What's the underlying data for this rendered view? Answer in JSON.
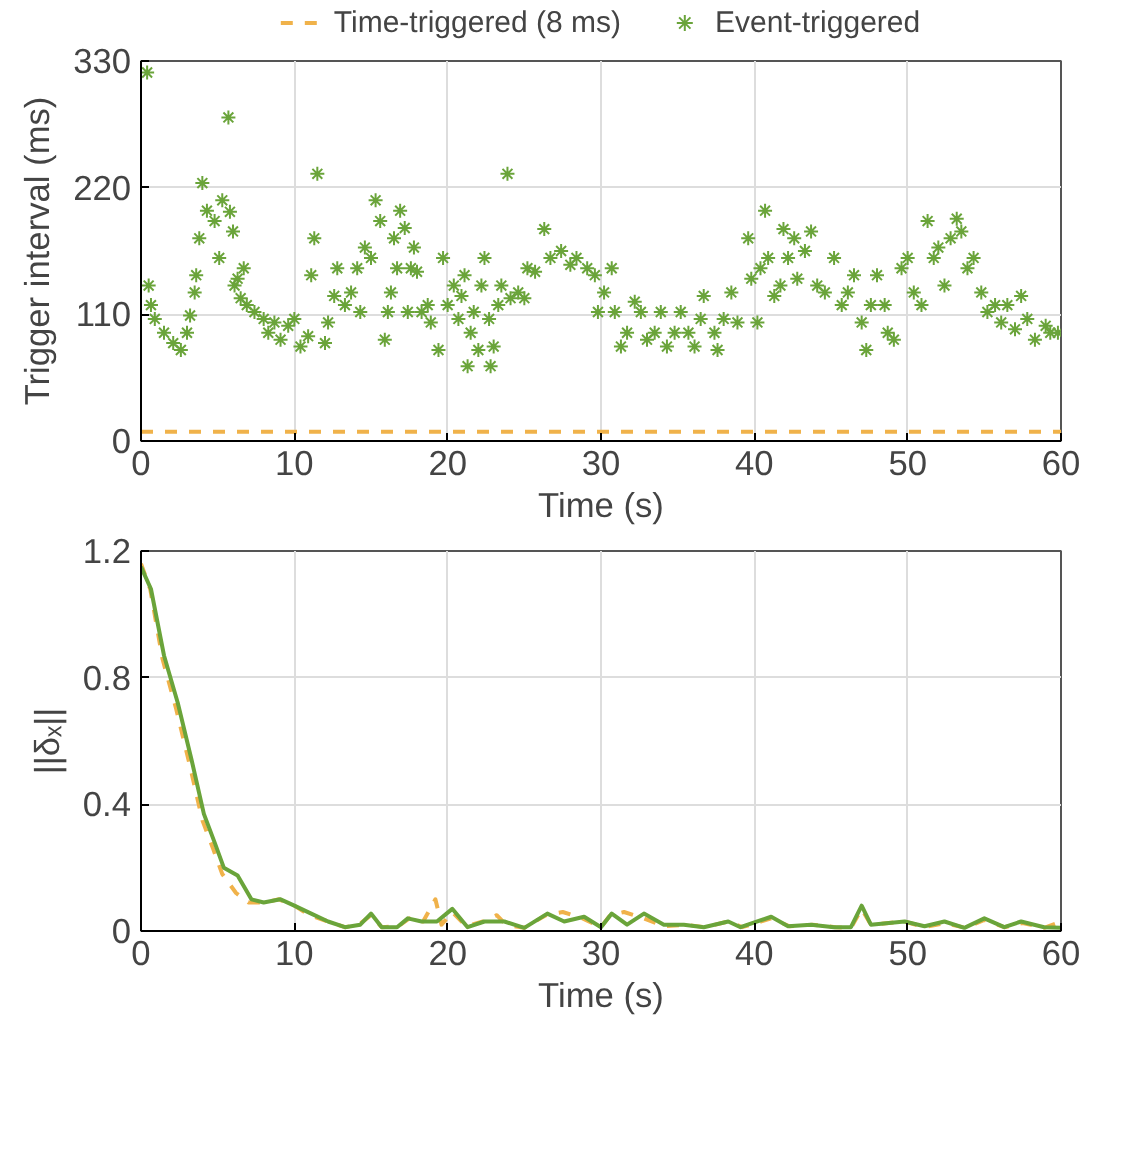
{
  "chart_data": [
    {
      "type": "scatter",
      "xlabel": "Time (s)",
      "ylabel": "Trigger interval (ms)",
      "xlim": [
        0,
        60
      ],
      "xticks": [
        0,
        10,
        20,
        30,
        40,
        50,
        60
      ],
      "ylim": [
        0,
        330
      ],
      "yticks": [
        0,
        110,
        220,
        330
      ],
      "grid": true,
      "legend": "top",
      "series": [
        {
          "name": "Time-triggered (8 ms)",
          "type": "line",
          "line_style": "dashed",
          "marker": "none",
          "color": "#f0b24a",
          "x": [
            0,
            60
          ],
          "values": [
            8,
            8
          ]
        },
        {
          "name": "Event-triggered",
          "marker": "cross",
          "color": "#6aa43a",
          "x": [
            0.4,
            0.5,
            0.65,
            0.9,
            1.5,
            2.1,
            2.6,
            3.0,
            3.2,
            3.5,
            3.6,
            3.8,
            4.0,
            4.3,
            4.8,
            5.1,
            5.3,
            5.7,
            5.8,
            6.0,
            6.1,
            6.3,
            6.5,
            6.7,
            6.9,
            7.4,
            8.0,
            8.3,
            8.7,
            9.1,
            9.6,
            10.0,
            10.4,
            10.9,
            11.1,
            11.3,
            11.5,
            12.0,
            12.2,
            12.6,
            12.8,
            13.3,
            13.7,
            14.1,
            14.3,
            14.6,
            15.0,
            15.3,
            15.6,
            15.9,
            16.1,
            16.3,
            16.5,
            16.7,
            16.9,
            17.2,
            17.4,
            17.6,
            17.8,
            18.0,
            18.3,
            18.7,
            18.9,
            19.4,
            19.7,
            20.0,
            20.4,
            20.7,
            20.9,
            21.1,
            21.3,
            21.5,
            21.7,
            22.0,
            22.2,
            22.4,
            22.7,
            22.8,
            23.0,
            23.3,
            23.5,
            23.9,
            24.1,
            24.6,
            25.0,
            25.2,
            25.7,
            26.3,
            26.7,
            27.4,
            28.0,
            28.4,
            29.1,
            29.6,
            29.8,
            30.2,
            30.7,
            30.9,
            31.3,
            31.7,
            32.2,
            32.6,
            33.0,
            33.5,
            33.9,
            34.3,
            34.8,
            35.2,
            35.7,
            36.1,
            36.5,
            36.7,
            37.4,
            37.6,
            38.0,
            38.5,
            38.9,
            39.6,
            39.8,
            40.2,
            40.4,
            40.7,
            40.9,
            41.3,
            41.7,
            41.9,
            42.2,
            42.6,
            42.8,
            43.3,
            43.7,
            44.1,
            44.6,
            45.2,
            45.7,
            46.1,
            46.5,
            47.0,
            47.3,
            47.6,
            48.0,
            48.5,
            48.7,
            49.1,
            49.6,
            50.0,
            50.4,
            50.9,
            51.3,
            51.7,
            52.0,
            52.4,
            52.8,
            53.2,
            53.5,
            53.9,
            54.3,
            54.8,
            55.2,
            55.7,
            56.1,
            56.5,
            57.0,
            57.4,
            57.8,
            58.3,
            59.0,
            59.3,
            59.8
          ],
          "values": [
            320,
            135,
            118,
            106,
            94,
            85,
            79,
            94,
            109,
            129,
            144,
            176,
            224,
            200,
            191,
            159,
            209,
            281,
            199,
            182,
            135,
            141,
            124,
            150,
            118,
            112,
            106,
            94,
            103,
            88,
            100,
            106,
            82,
            91,
            144,
            176,
            232,
            85,
            103,
            126,
            150,
            118,
            129,
            150,
            112,
            168,
            159,
            209,
            191,
            88,
            112,
            129,
            176,
            150,
            200,
            185,
            112,
            150,
            168,
            147,
            112,
            118,
            103,
            79,
            159,
            118,
            135,
            106,
            126,
            144,
            65,
            94,
            112,
            79,
            135,
            159,
            106,
            65,
            82,
            118,
            135,
            232,
            124,
            129,
            124,
            150,
            147,
            184,
            159,
            165,
            153,
            159,
            150,
            144,
            112,
            129,
            150,
            112,
            82,
            94,
            121,
            112,
            88,
            94,
            112,
            82,
            94,
            112,
            94,
            82,
            106,
            126,
            94,
            79,
            106,
            129,
            103,
            176,
            141,
            103,
            150,
            200,
            159,
            126,
            135,
            184,
            159,
            176,
            141,
            165,
            182,
            135,
            129,
            159,
            118,
            129,
            144,
            103,
            79,
            118,
            144,
            118,
            94,
            88,
            150,
            159,
            129,
            118,
            191,
            159,
            168,
            135,
            176,
            193,
            182,
            150,
            159,
            129,
            112,
            118,
            103,
            118,
            97,
            126,
            106,
            88,
            100,
            94,
            94
          ]
        }
      ]
    },
    {
      "type": "line",
      "xlabel": "Time (s)",
      "ylabel": "||δₓ||",
      "xlim": [
        0,
        60
      ],
      "xticks": [
        0,
        10,
        20,
        30,
        40,
        50,
        60
      ],
      "ylim": [
        0,
        1.2
      ],
      "yticks": [
        0,
        {
          "value": 0.4,
          "label": "0.4"
        },
        {
          "value": 0.8,
          "label": "0.8"
        },
        {
          "value": 1.2,
          "label": "1.2"
        }
      ],
      "grid": true,
      "series": [
        {
          "line_style": "dashed",
          "color": "#f0b24a",
          "x": [
            0,
            0.6,
            1.4,
            2.3,
            3.2,
            4.0,
            4.7,
            5.3,
            6.2,
            7.0,
            8.0,
            9.0,
            10.0,
            11.0,
            12.2,
            13.3,
            14.2,
            15.0,
            15.7,
            16.8,
            17.5,
            18.4,
            19.2,
            19.6,
            20.3,
            21.2,
            22.3,
            23.2,
            23.8,
            25.0,
            26.4,
            27.5,
            28.8,
            30.0,
            30.6,
            31.5,
            32.8,
            34.1,
            35.5,
            36.8,
            38.3,
            39.2,
            41.1,
            42.3,
            43.8,
            45.3,
            46.3,
            47.0,
            47.6,
            49.8,
            51.1,
            52.4,
            53.8,
            55.0,
            56.3,
            57.5,
            58.9,
            60
          ],
          "values": [
            1.16,
            1.08,
            0.86,
            0.7,
            0.52,
            0.35,
            0.26,
            0.18,
            0.12,
            0.09,
            0.09,
            0.1,
            0.08,
            0.05,
            0.03,
            0.012,
            0.02,
            0.05,
            0.012,
            0.015,
            0.04,
            0.03,
            0.1,
            0.02,
            0.06,
            0.015,
            0.03,
            0.05,
            0.02,
            0.01,
            0.05,
            0.06,
            0.04,
            0.012,
            0.05,
            0.06,
            0.04,
            0.015,
            0.02,
            0.012,
            0.03,
            0.012,
            0.04,
            0.015,
            0.02,
            0.012,
            0.01,
            0.07,
            0.02,
            0.03,
            0.012,
            0.025,
            0.01,
            0.035,
            0.012,
            0.025,
            0.01,
            0.03
          ]
        },
        {
          "line_style": "solid",
          "color": "#6aa43a",
          "x": [
            0,
            0.65,
            1.5,
            2.4,
            3.3,
            4.1,
            4.8,
            5.4,
            6.3,
            7.2,
            8.0,
            9.1,
            10.0,
            11.1,
            12.2,
            13.3,
            14.3,
            15.0,
            15.7,
            16.7,
            17.4,
            18.3,
            19.3,
            20.3,
            21.3,
            22.4,
            23.7,
            25.0,
            26.5,
            27.6,
            28.9,
            30.0,
            30.7,
            31.7,
            32.8,
            34.1,
            35.4,
            36.7,
            38.3,
            39.1,
            41.1,
            42.2,
            43.7,
            45.2,
            46.3,
            47.0,
            47.6,
            49.8,
            51.1,
            52.4,
            53.7,
            55.0,
            56.3,
            57.4,
            58.9,
            60
          ],
          "values": [
            1.15,
            1.08,
            0.87,
            0.72,
            0.54,
            0.37,
            0.28,
            0.2,
            0.175,
            0.1,
            0.09,
            0.1,
            0.08,
            0.055,
            0.03,
            0.012,
            0.02,
            0.055,
            0.012,
            0.012,
            0.04,
            0.03,
            0.03,
            0.07,
            0.012,
            0.03,
            0.03,
            0.01,
            0.055,
            0.03,
            0.045,
            0.012,
            0.055,
            0.02,
            0.055,
            0.02,
            0.02,
            0.012,
            0.03,
            0.012,
            0.045,
            0.015,
            0.02,
            0.012,
            0.012,
            0.08,
            0.02,
            0.03,
            0.015,
            0.03,
            0.01,
            0.04,
            0.012,
            0.03,
            0.012,
            0.01
          ]
        }
      ]
    }
  ]
}
